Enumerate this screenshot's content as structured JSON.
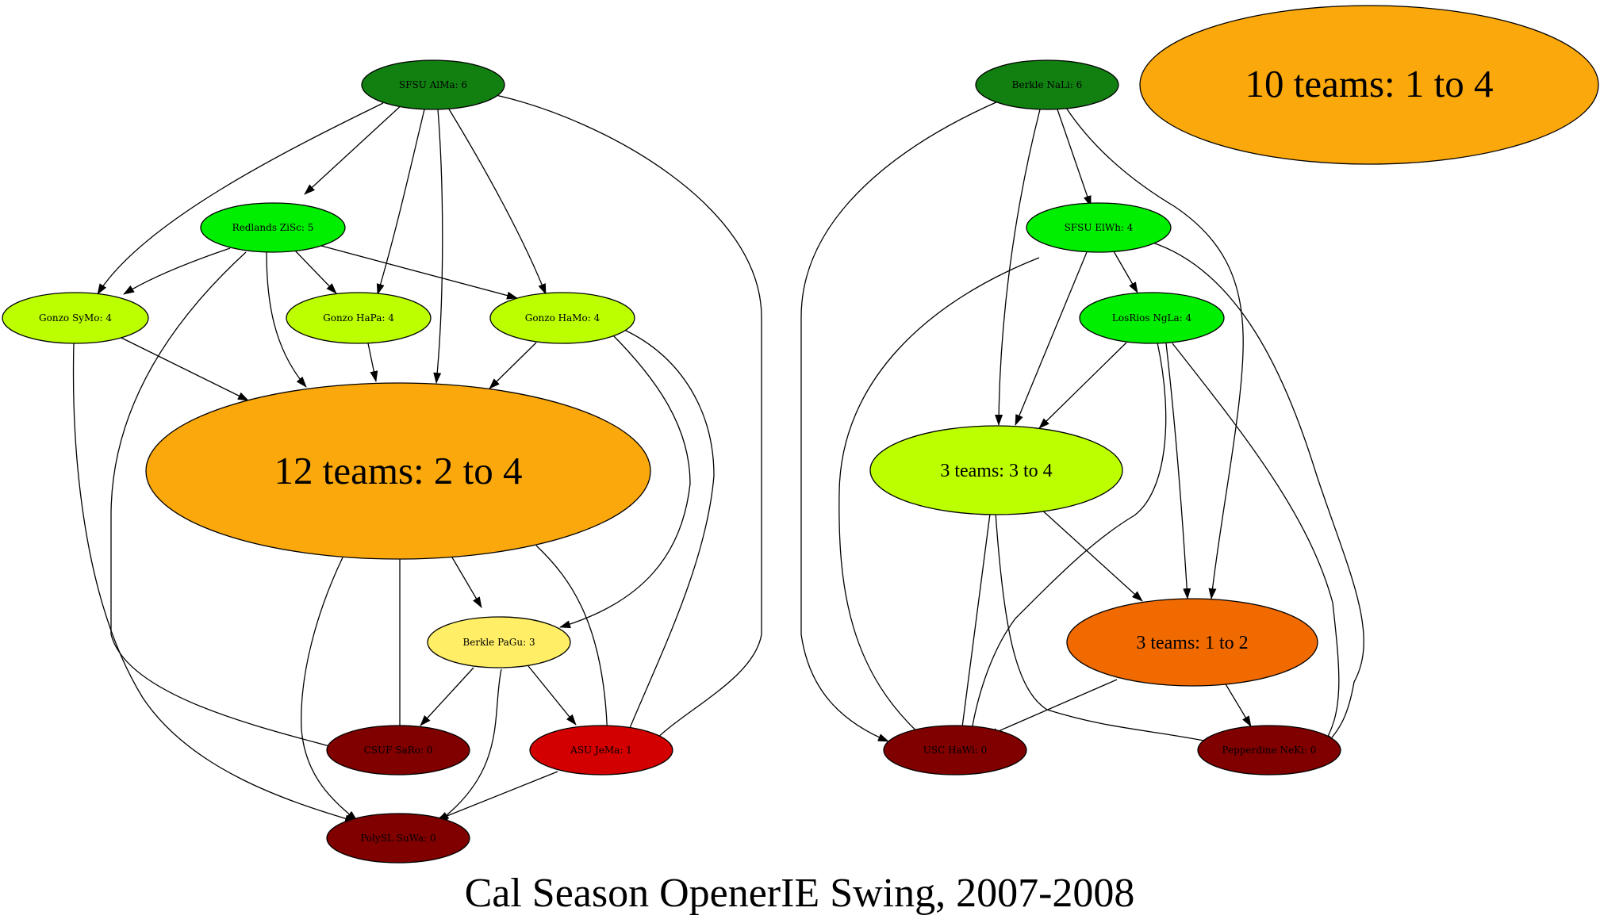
{
  "title": "Cal Season OpenerIE Swing, 2007-2008",
  "nodes": {
    "sfsu_alma": {
      "label": "SFSU AlMa: 6",
      "color": "#118011"
    },
    "redlands": {
      "label": "Redlands ZiSc: 5",
      "color": "#00ee00"
    },
    "gonzo_symo": {
      "label": "Gonzo SyMo: 4",
      "color": "#bbff00"
    },
    "gonzo_hapa": {
      "label": "Gonzo HaPa: 4",
      "color": "#bbff00"
    },
    "gonzo_hamo": {
      "label": "Gonzo HaMo: 4",
      "color": "#bbff00"
    },
    "group12": {
      "label": "12 teams: 2 to 4",
      "color": "#fba80c"
    },
    "berkle_pagu": {
      "label": "Berkle PaGu: 3",
      "color": "#ffee66"
    },
    "csuf_saro": {
      "label": "CSUF SaRo: 0",
      "color": "#800000"
    },
    "asu_jema": {
      "label": "ASU JeMa: 1",
      "color": "#d20000"
    },
    "polysl_suwa": {
      "label": "PolySL SuWa: 0",
      "color": "#800000"
    },
    "berkle_nali": {
      "label": "Berkle NaLi: 6",
      "color": "#118011"
    },
    "group10": {
      "label": "10 teams: 1 to 4",
      "color": "#fba80c"
    },
    "sfsu_elwh": {
      "label": "SFSU ElWh: 4",
      "color": "#00ee00"
    },
    "losrios": {
      "label": "LosRios NgLa: 4",
      "color": "#00ee00"
    },
    "group3a": {
      "label": "3 teams: 3 to 4",
      "color": "#bbff00"
    },
    "group3b": {
      "label": "3 teams: 1 to 2",
      "color": "#f06a00"
    },
    "usc_hawi": {
      "label": "USC HaWi: 0",
      "color": "#800000"
    },
    "pepp_neki": {
      "label": "Pepperdine NeKi: 0",
      "color": "#800000"
    }
  },
  "edges": [
    [
      "sfsu_alma",
      "redlands"
    ],
    [
      "sfsu_alma",
      "gonzo_symo"
    ],
    [
      "sfsu_alma",
      "gonzo_hapa"
    ],
    [
      "sfsu_alma",
      "gonzo_hamo"
    ],
    [
      "sfsu_alma",
      "group12"
    ],
    [
      "sfsu_alma",
      "asu_jema"
    ],
    [
      "redlands",
      "gonzo_symo"
    ],
    [
      "redlands",
      "gonzo_hapa"
    ],
    [
      "redlands",
      "gonzo_hamo"
    ],
    [
      "redlands",
      "group12"
    ],
    [
      "redlands",
      "csuf_saro"
    ],
    [
      "gonzo_symo",
      "group12"
    ],
    [
      "gonzo_symo",
      "polysl_suwa"
    ],
    [
      "gonzo_hapa",
      "group12"
    ],
    [
      "gonzo_hamo",
      "group12"
    ],
    [
      "gonzo_hamo",
      "berkle_pagu"
    ],
    [
      "gonzo_hamo",
      "asu_jema"
    ],
    [
      "group12",
      "berkle_pagu"
    ],
    [
      "group12",
      "csuf_saro"
    ],
    [
      "group12",
      "asu_jema"
    ],
    [
      "group12",
      "polysl_suwa"
    ],
    [
      "berkle_pagu",
      "csuf_saro"
    ],
    [
      "berkle_pagu",
      "asu_jema"
    ],
    [
      "berkle_pagu",
      "polysl_suwa"
    ],
    [
      "asu_jema",
      "polysl_suwa"
    ],
    [
      "berkle_nali",
      "sfsu_elwh"
    ],
    [
      "berkle_nali",
      "group3a"
    ],
    [
      "berkle_nali",
      "group3b"
    ],
    [
      "berkle_nali",
      "usc_hawi"
    ],
    [
      "sfsu_elwh",
      "losrios"
    ],
    [
      "sfsu_elwh",
      "group3a"
    ],
    [
      "sfsu_elwh",
      "usc_hawi"
    ],
    [
      "sfsu_elwh",
      "pepp_neki"
    ],
    [
      "losrios",
      "group3a"
    ],
    [
      "losrios",
      "group3b"
    ],
    [
      "losrios",
      "usc_hawi"
    ],
    [
      "losrios",
      "pepp_neki"
    ],
    [
      "group3a",
      "group3b"
    ],
    [
      "group3a",
      "usc_hawi"
    ],
    [
      "group3a",
      "pepp_neki"
    ],
    [
      "group3b",
      "usc_hawi"
    ],
    [
      "group3b",
      "pepp_neki"
    ]
  ]
}
